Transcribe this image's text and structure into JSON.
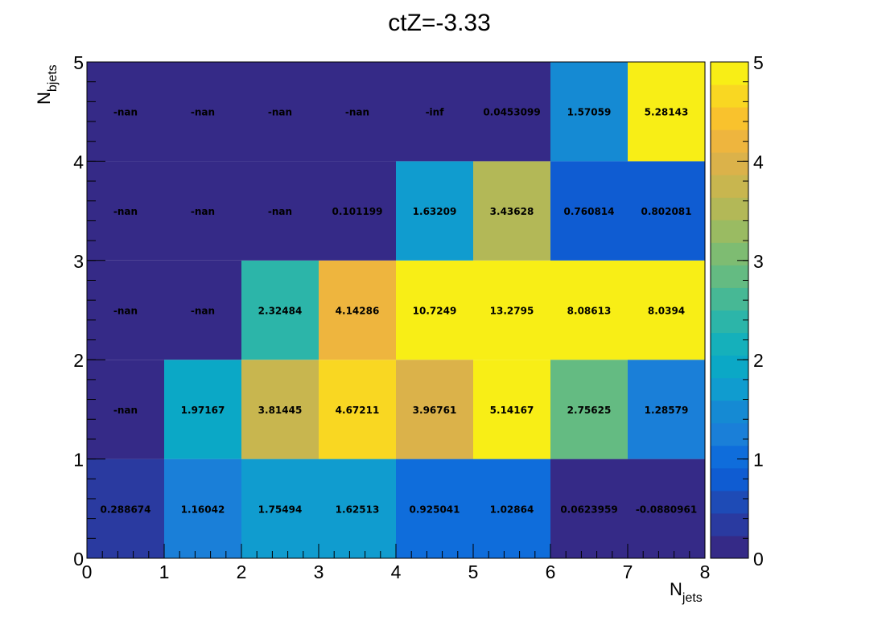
{
  "chart_data": {
    "type": "heatmap",
    "title": "ctZ=-3.33",
    "xlabel": "N",
    "xlabel_sub": "jets",
    "ylabel": "N",
    "ylabel_sub": "bjets",
    "x_edges": [
      0,
      1,
      2,
      3,
      4,
      5,
      6,
      7,
      8
    ],
    "y_edges": [
      0,
      1,
      2,
      3,
      4,
      5
    ],
    "xlim": [
      0,
      8
    ],
    "ylim": [
      0,
      5
    ],
    "x_ticks": [
      "0",
      "1",
      "2",
      "3",
      "4",
      "5",
      "6",
      "7",
      "8"
    ],
    "y_ticks": [
      "0",
      "1",
      "2",
      "3",
      "4",
      "5"
    ],
    "zlim": [
      0,
      5
    ],
    "z_ticks": [
      "0",
      "1",
      "2",
      "3",
      "4",
      "5"
    ],
    "colormap": [
      "#352a87",
      "#2a3aa0",
      "#1e4bb6",
      "#0f5cd2",
      "#0f6ddb",
      "#1a7fd8",
      "#158ad3",
      "#109ccf",
      "#0ba8c6",
      "#15b0bb",
      "#2cb5a9",
      "#47b895",
      "#64bb82",
      "#7ebc72",
      "#9abb62",
      "#b3b857",
      "#c8b64f",
      "#dbb24a",
      "#eeb53e",
      "#f9c22d",
      "#f9d722",
      "#f8ee16"
    ],
    "cells": [
      {
        "x": 0.5,
        "y": 0.5,
        "z": 0.288674,
        "label": "0.288674"
      },
      {
        "x": 1.5,
        "y": 0.5,
        "z": 1.16042,
        "label": "1.16042"
      },
      {
        "x": 2.5,
        "y": 0.5,
        "z": 1.75494,
        "label": "1.75494"
      },
      {
        "x": 3.5,
        "y": 0.5,
        "z": 1.62513,
        "label": "1.62513"
      },
      {
        "x": 4.5,
        "y": 0.5,
        "z": 0.925041,
        "label": "0.925041"
      },
      {
        "x": 5.5,
        "y": 0.5,
        "z": 1.02864,
        "label": "1.02864"
      },
      {
        "x": 6.5,
        "y": 0.5,
        "z": 0.0623959,
        "label": "0.0623959"
      },
      {
        "x": 7.5,
        "y": 0.5,
        "z": -0.0880961,
        "label": "-0.0880961"
      },
      {
        "x": 0.5,
        "y": 1.5,
        "z": null,
        "label": "-nan"
      },
      {
        "x": 1.5,
        "y": 1.5,
        "z": 1.97167,
        "label": "1.97167"
      },
      {
        "x": 2.5,
        "y": 1.5,
        "z": 3.81445,
        "label": "3.81445"
      },
      {
        "x": 3.5,
        "y": 1.5,
        "z": 4.67211,
        "label": "4.67211"
      },
      {
        "x": 4.5,
        "y": 1.5,
        "z": 3.96761,
        "label": "3.96761"
      },
      {
        "x": 5.5,
        "y": 1.5,
        "z": 5.14167,
        "label": "5.14167"
      },
      {
        "x": 6.5,
        "y": 1.5,
        "z": 2.75625,
        "label": "2.75625"
      },
      {
        "x": 7.5,
        "y": 1.5,
        "z": 1.28579,
        "label": "1.28579"
      },
      {
        "x": 0.5,
        "y": 2.5,
        "z": null,
        "label": "-nan"
      },
      {
        "x": 1.5,
        "y": 2.5,
        "z": null,
        "label": "-nan"
      },
      {
        "x": 2.5,
        "y": 2.5,
        "z": 2.32484,
        "label": "2.32484"
      },
      {
        "x": 3.5,
        "y": 2.5,
        "z": 4.14286,
        "label": "4.14286"
      },
      {
        "x": 4.5,
        "y": 2.5,
        "z": 10.7249,
        "label": "10.7249"
      },
      {
        "x": 5.5,
        "y": 2.5,
        "z": 13.2795,
        "label": "13.2795"
      },
      {
        "x": 6.5,
        "y": 2.5,
        "z": 8.08613,
        "label": "8.08613"
      },
      {
        "x": 7.5,
        "y": 2.5,
        "z": 8.0394,
        "label": "8.0394"
      },
      {
        "x": 0.5,
        "y": 3.5,
        "z": null,
        "label": "-nan"
      },
      {
        "x": 1.5,
        "y": 3.5,
        "z": null,
        "label": "-nan"
      },
      {
        "x": 2.5,
        "y": 3.5,
        "z": null,
        "label": "-nan"
      },
      {
        "x": 3.5,
        "y": 3.5,
        "z": 0.101199,
        "label": "0.101199"
      },
      {
        "x": 4.5,
        "y": 3.5,
        "z": 1.63209,
        "label": "1.63209"
      },
      {
        "x": 5.5,
        "y": 3.5,
        "z": 3.43628,
        "label": "3.43628"
      },
      {
        "x": 6.5,
        "y": 3.5,
        "z": 0.760814,
        "label": "0.760814"
      },
      {
        "x": 7.5,
        "y": 3.5,
        "z": 0.802081,
        "label": "0.802081"
      },
      {
        "x": 0.5,
        "y": 4.5,
        "z": null,
        "label": "-nan"
      },
      {
        "x": 1.5,
        "y": 4.5,
        "z": null,
        "label": "-nan"
      },
      {
        "x": 2.5,
        "y": 4.5,
        "z": null,
        "label": "-nan"
      },
      {
        "x": 3.5,
        "y": 4.5,
        "z": null,
        "label": "-nan"
      },
      {
        "x": 4.5,
        "y": 4.5,
        "z": null,
        "label": "-inf"
      },
      {
        "x": 5.5,
        "y": 4.5,
        "z": 0.0453099,
        "label": "0.0453099"
      },
      {
        "x": 6.5,
        "y": 4.5,
        "z": 1.57059,
        "label": "1.57059"
      },
      {
        "x": 7.5,
        "y": 4.5,
        "z": 5.28143,
        "label": "5.28143"
      }
    ]
  }
}
